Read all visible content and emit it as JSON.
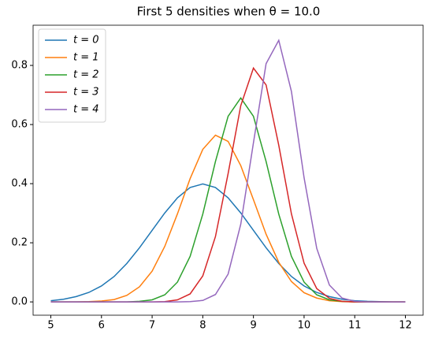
{
  "chart_data": {
    "type": "line",
    "title": "First 5 densities when θ = 10.0",
    "x": [
      5,
      5.25,
      5.5,
      5.75,
      6,
      6.25,
      6.5,
      6.75,
      7,
      7.25,
      7.5,
      7.75,
      8,
      8.25,
      8.5,
      8.75,
      9,
      9.25,
      9.5,
      9.75,
      10,
      10.25,
      10.5,
      10.75,
      11,
      11.25,
      11.5,
      11.75,
      12
    ],
    "series": [
      {
        "name": "t = 0",
        "color": "#1f77b4",
        "values": [
          0.004,
          0.009,
          0.018,
          0.032,
          0.054,
          0.086,
          0.13,
          0.183,
          0.242,
          0.301,
          0.352,
          0.387,
          0.399,
          0.387,
          0.352,
          0.301,
          0.242,
          0.183,
          0.13,
          0.086,
          0.054,
          0.032,
          0.018,
          0.009,
          0.004,
          0.002,
          0.001,
          0.0,
          0.0
        ]
      },
      {
        "name": "t = 1",
        "color": "#ff7f0e",
        "values": [
          0.0,
          0.0,
          0.0,
          0.001,
          0.003,
          0.008,
          0.022,
          0.051,
          0.104,
          0.188,
          0.298,
          0.417,
          0.516,
          0.564,
          0.543,
          0.461,
          0.346,
          0.229,
          0.134,
          0.069,
          0.031,
          0.013,
          0.004,
          0.001,
          0.0,
          0.0,
          0.0,
          0.0,
          0.0
        ]
      },
      {
        "name": "t = 2",
        "color": "#2ca02c",
        "values": [
          0.0,
          0.0,
          0.0,
          0.0,
          0.0,
          0.0,
          0.0,
          0.002,
          0.007,
          0.024,
          0.067,
          0.154,
          0.297,
          0.475,
          0.628,
          0.69,
          0.628,
          0.475,
          0.297,
          0.154,
          0.067,
          0.024,
          0.007,
          0.002,
          0.0,
          0.0,
          0.0,
          0.0,
          0.0
        ]
      },
      {
        "name": "t = 3",
        "color": "#d62728",
        "values": [
          0.0,
          0.0,
          0.0,
          0.0,
          0.0,
          0.0,
          0.0,
          0.0,
          0.0,
          0.001,
          0.007,
          0.027,
          0.088,
          0.221,
          0.434,
          0.664,
          0.791,
          0.734,
          0.53,
          0.298,
          0.131,
          0.045,
          0.012,
          0.002,
          0.0,
          0.0,
          0.0,
          0.0,
          0.0
        ]
      },
      {
        "name": "t = 4",
        "color": "#9467bd",
        "values": [
          0.0,
          0.0,
          0.0,
          0.0,
          0.0,
          0.0,
          0.0,
          0.0,
          0.0,
          0.0,
          0.0,
          0.001,
          0.005,
          0.025,
          0.094,
          0.263,
          0.538,
          0.806,
          0.885,
          0.712,
          0.42,
          0.181,
          0.057,
          0.013,
          0.002,
          0.0,
          0.0,
          0.0,
          0.0
        ]
      }
    ],
    "xlim": [
      4.65,
      12.35
    ],
    "xticks": [
      5,
      6,
      7,
      8,
      9,
      10,
      11,
      12
    ],
    "ylim": [
      -0.045,
      0.936
    ],
    "yticks": [
      {
        "value": 0,
        "label": "0.0"
      },
      {
        "value": 0.2,
        "label": "0.2"
      },
      {
        "value": 0.4,
        "label": "0.4"
      },
      {
        "value": 0.6,
        "label": "0.6"
      },
      {
        "value": 0.8,
        "label": "0.8"
      }
    ],
    "grid": false,
    "legend": "upper left"
  }
}
